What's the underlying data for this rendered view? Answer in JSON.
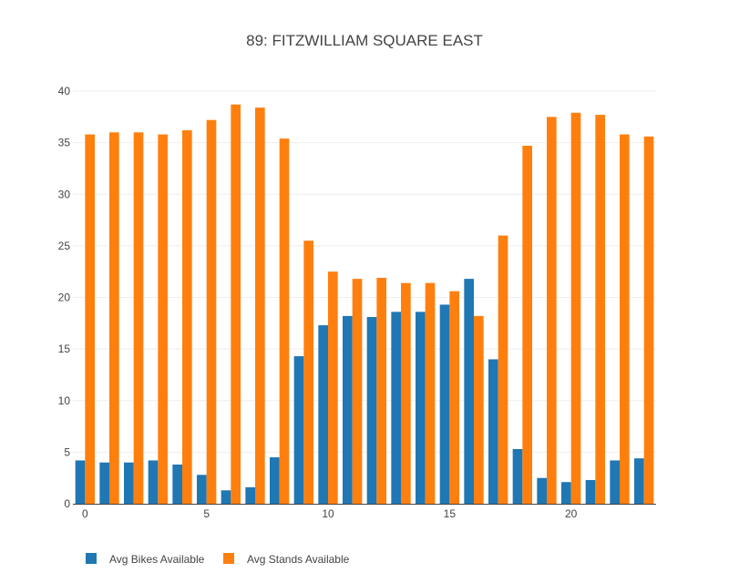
{
  "chart_data": {
    "type": "bar",
    "title": "89: FITZWILLIAM SQUARE EAST",
    "xlabel": "",
    "ylabel": "",
    "x": [
      0,
      1,
      2,
      3,
      4,
      5,
      6,
      7,
      8,
      9,
      10,
      11,
      12,
      13,
      14,
      15,
      16,
      17,
      18,
      19,
      20,
      21,
      22,
      23
    ],
    "xlim": [
      -0.5,
      23.5
    ],
    "ylim": [
      0,
      40
    ],
    "x_ticks": [
      0,
      5,
      10,
      15,
      20
    ],
    "y_ticks": [
      0,
      5,
      10,
      15,
      20,
      25,
      30,
      35,
      40
    ],
    "grid": "y",
    "legend_position": "bottom",
    "series": [
      {
        "name": "Avg Bikes Available",
        "color": "#1f77b4",
        "values": [
          4.2,
          4.0,
          4.0,
          4.2,
          3.8,
          2.8,
          1.3,
          1.6,
          4.5,
          14.3,
          17.3,
          18.2,
          18.1,
          18.6,
          18.6,
          19.3,
          21.8,
          14.0,
          5.3,
          2.5,
          2.1,
          2.3,
          4.2,
          4.4
        ]
      },
      {
        "name": "Avg Stands Available",
        "color": "#ff7f0e",
        "values": [
          35.8,
          36.0,
          36.0,
          35.8,
          36.2,
          37.2,
          38.7,
          38.4,
          35.4,
          25.5,
          22.5,
          21.8,
          21.9,
          21.4,
          21.4,
          20.6,
          18.2,
          26.0,
          34.7,
          37.5,
          37.9,
          37.7,
          35.8,
          35.6
        ]
      }
    ]
  }
}
